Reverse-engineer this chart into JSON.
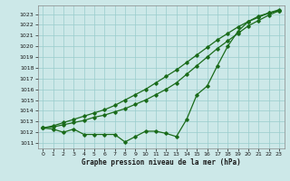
{
  "title": "",
  "xlabel": "Graphe pression niveau de la mer (hPa)",
  "xlim": [
    -0.5,
    23.5
  ],
  "ylim": [
    1010.5,
    1023.8
  ],
  "yticks": [
    1011,
    1012,
    1013,
    1014,
    1015,
    1016,
    1017,
    1018,
    1019,
    1020,
    1021,
    1022,
    1023
  ],
  "xticks": [
    0,
    1,
    2,
    3,
    4,
    5,
    6,
    7,
    8,
    9,
    10,
    11,
    12,
    13,
    14,
    15,
    16,
    17,
    18,
    19,
    20,
    21,
    22,
    23
  ],
  "background_color": "#cce8e8",
  "grid_color": "#99cccc",
  "line_color": "#1a6b1a",
  "line1_x": [
    0,
    1,
    2,
    3,
    4,
    5,
    6,
    7,
    8,
    9,
    10,
    11,
    12,
    13,
    14,
    15,
    16,
    17,
    18,
    19,
    20,
    21,
    22,
    23
  ],
  "line1_y": [
    1012.4,
    1012.6,
    1012.9,
    1013.2,
    1013.5,
    1013.8,
    1014.1,
    1014.5,
    1015.0,
    1015.5,
    1016.0,
    1016.6,
    1017.2,
    1017.8,
    1018.5,
    1019.2,
    1019.9,
    1020.6,
    1021.2,
    1021.8,
    1022.3,
    1022.7,
    1023.1,
    1023.4
  ],
  "line2_x": [
    0,
    1,
    2,
    3,
    4,
    5,
    6,
    7,
    8,
    9,
    10,
    11,
    12,
    13,
    14,
    15,
    16,
    17,
    18,
    19,
    20,
    21,
    22,
    23
  ],
  "line2_y": [
    1012.4,
    1012.5,
    1012.7,
    1012.9,
    1013.1,
    1013.4,
    1013.6,
    1013.9,
    1014.2,
    1014.6,
    1015.0,
    1015.5,
    1016.0,
    1016.6,
    1017.4,
    1018.2,
    1019.0,
    1019.8,
    1020.5,
    1021.2,
    1021.9,
    1022.4,
    1022.9,
    1023.3
  ],
  "line3_x": [
    0,
    1,
    2,
    3,
    4,
    5,
    6,
    7,
    8,
    9,
    10,
    11,
    12,
    13,
    14,
    15,
    16,
    17,
    18,
    19,
    20,
    21,
    22,
    23
  ],
  "line3_y": [
    1012.4,
    1012.3,
    1012.0,
    1012.3,
    1011.8,
    1011.8,
    1011.8,
    1011.8,
    1011.1,
    1011.6,
    1012.1,
    1012.1,
    1011.9,
    1011.6,
    1013.2,
    1015.5,
    1016.3,
    1018.2,
    1020.0,
    1021.4,
    1022.3,
    1022.8,
    1023.1,
    1023.3
  ]
}
